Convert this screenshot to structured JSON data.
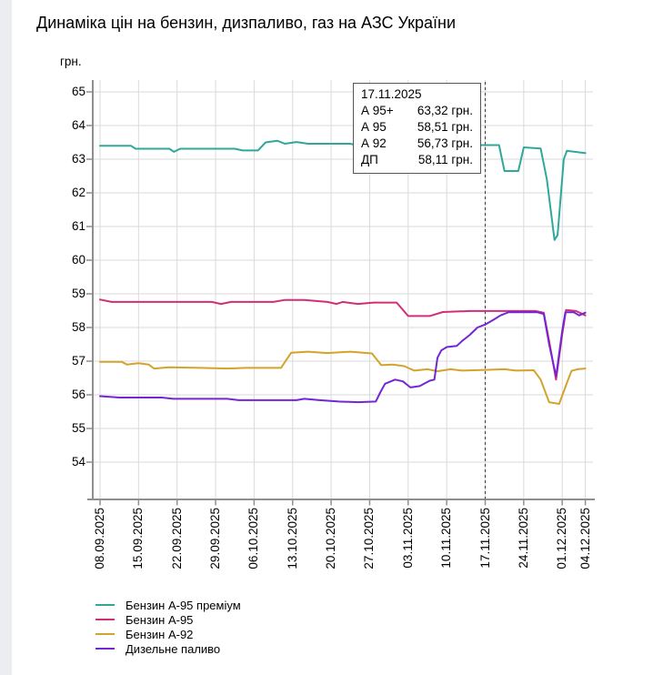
{
  "title": "Динаміка цін на бензин, дизпаливо, газ на АЗС України",
  "tooltip": {
    "date": "17.11.2025",
    "rows": [
      {
        "label": "А 95+",
        "value": "63,32 грн."
      },
      {
        "label": "А 95",
        "value": "58,51 грн."
      },
      {
        "label": "А 92",
        "value": "56,73 грн."
      },
      {
        "label": "ДП",
        "value": "58,11 грн."
      }
    ]
  },
  "chart_data": {
    "type": "line",
    "title": "Динаміка цін на бензин, дизпаливо, газ на АЗС України",
    "xlabel": "",
    "ylabel": "грн.",
    "ylim": [
      52.9,
      65.4
    ],
    "grid": true,
    "legend_position": "bottom-left",
    "y_ticks": [
      65,
      64,
      63,
      62,
      61,
      60,
      59,
      58,
      57,
      56,
      55,
      54
    ],
    "x_ticks": [
      {
        "index": 0,
        "label": "08.09.2025"
      },
      {
        "index": 5,
        "label": "15.09.2025"
      },
      {
        "index": 10,
        "label": "22.09.2025"
      },
      {
        "index": 15,
        "label": "29.09.2025"
      },
      {
        "index": 20,
        "label": "06.10.2025"
      },
      {
        "index": 25,
        "label": "13.10.2025"
      },
      {
        "index": 30,
        "label": "20.10.2025"
      },
      {
        "index": 35,
        "label": "27.10.2025"
      },
      {
        "index": 40,
        "label": "03.11.2025"
      },
      {
        "index": 45,
        "label": "10.11.2025"
      },
      {
        "index": 50,
        "label": "17.11.2025"
      },
      {
        "index": 55,
        "label": "24.11.2025"
      },
      {
        "index": 60,
        "label": "01.12.2025"
      },
      {
        "index": 63,
        "label": "04.12.2025"
      }
    ],
    "marker_line_index": 50,
    "marker_line_date": "17.11.2025",
    "axis_color": "#8f8f8f",
    "grid_color": "#dadada",
    "marker_line_color": "#3c3c3c",
    "series": [
      {
        "name": "Бензин А-95 преміум",
        "color": "#2fa89a",
        "points": [
          [
            0,
            63.4
          ],
          [
            4,
            63.4
          ],
          [
            4.6,
            63.31
          ],
          [
            9,
            63.31
          ],
          [
            9.6,
            63.22
          ],
          [
            10.4,
            63.31
          ],
          [
            17.5,
            63.31
          ],
          [
            18.5,
            63.26
          ],
          [
            20.5,
            63.26
          ],
          [
            21.5,
            63.5
          ],
          [
            23,
            63.55
          ],
          [
            24,
            63.46
          ],
          [
            25.5,
            63.51
          ],
          [
            27,
            63.46
          ],
          [
            32.5,
            63.46
          ],
          [
            33.5,
            63.4
          ],
          [
            36,
            63.4
          ],
          [
            37,
            62.62
          ],
          [
            39,
            62.62
          ],
          [
            39.8,
            63.05
          ],
          [
            40.5,
            63.4
          ],
          [
            42.8,
            63.4
          ],
          [
            43.4,
            62.62
          ],
          [
            44,
            62.72
          ],
          [
            45.5,
            63.0
          ],
          [
            47,
            63.2
          ],
          [
            48.5,
            63.38
          ],
          [
            49.5,
            63.42
          ],
          [
            51.8,
            63.42
          ],
          [
            52.5,
            62.65
          ],
          [
            54.3,
            62.65
          ],
          [
            55,
            63.35
          ],
          [
            57.2,
            63.32
          ],
          [
            58,
            62.4
          ],
          [
            59,
            60.6
          ],
          [
            59.4,
            60.75
          ],
          [
            60.2,
            63.0
          ],
          [
            60.6,
            63.25
          ],
          [
            63,
            63.18
          ]
        ]
      },
      {
        "name": "Бензин А-95",
        "color": "#d02f77",
        "points": [
          [
            0,
            58.83
          ],
          [
            1.5,
            58.76
          ],
          [
            14.5,
            58.76
          ],
          [
            15.7,
            58.7
          ],
          [
            17,
            58.76
          ],
          [
            22.5,
            58.76
          ],
          [
            24,
            58.82
          ],
          [
            26.5,
            58.82
          ],
          [
            29.5,
            58.76
          ],
          [
            30.7,
            58.7
          ],
          [
            31.5,
            58.76
          ],
          [
            33.5,
            58.7
          ],
          [
            35.5,
            58.74
          ],
          [
            38.5,
            58.74
          ],
          [
            40,
            58.34
          ],
          [
            42.8,
            58.34
          ],
          [
            44.5,
            58.46
          ],
          [
            48,
            58.49
          ],
          [
            56.5,
            58.49
          ],
          [
            57.6,
            58.44
          ],
          [
            58.3,
            57.6
          ],
          [
            59.2,
            56.45
          ],
          [
            60,
            57.8
          ],
          [
            60.5,
            58.52
          ],
          [
            61.8,
            58.49
          ],
          [
            63,
            58.36
          ]
        ]
      },
      {
        "name": "Бензин А-92",
        "color": "#d2a42e",
        "points": [
          [
            0,
            56.98
          ],
          [
            2.8,
            56.98
          ],
          [
            3.5,
            56.9
          ],
          [
            5,
            56.94
          ],
          [
            6.3,
            56.9
          ],
          [
            7,
            56.78
          ],
          [
            9,
            56.82
          ],
          [
            13,
            56.8
          ],
          [
            16.5,
            56.78
          ],
          [
            19,
            56.8
          ],
          [
            23.5,
            56.8
          ],
          [
            24.8,
            57.25
          ],
          [
            27,
            57.28
          ],
          [
            29.5,
            57.24
          ],
          [
            32.5,
            57.28
          ],
          [
            35.3,
            57.23
          ],
          [
            36.5,
            56.88
          ],
          [
            38,
            56.9
          ],
          [
            39.5,
            56.85
          ],
          [
            40.8,
            56.72
          ],
          [
            42.5,
            56.76
          ],
          [
            43.8,
            56.7
          ],
          [
            45.5,
            56.76
          ],
          [
            47,
            56.72
          ],
          [
            50,
            56.74
          ],
          [
            52.5,
            56.76
          ],
          [
            54,
            56.72
          ],
          [
            56.3,
            56.73
          ],
          [
            57.2,
            56.45
          ],
          [
            58.3,
            55.78
          ],
          [
            59.6,
            55.73
          ],
          [
            60.6,
            56.35
          ],
          [
            61.2,
            56.71
          ],
          [
            62,
            56.76
          ],
          [
            63,
            56.78
          ]
        ]
      },
      {
        "name": "Дизельне паливо",
        "color": "#7326d3",
        "points": [
          [
            0,
            55.96
          ],
          [
            2.5,
            55.92
          ],
          [
            8,
            55.92
          ],
          [
            9.5,
            55.88
          ],
          [
            16.5,
            55.88
          ],
          [
            18,
            55.84
          ],
          [
            25.5,
            55.84
          ],
          [
            26.5,
            55.88
          ],
          [
            28.5,
            55.84
          ],
          [
            31,
            55.8
          ],
          [
            33.5,
            55.78
          ],
          [
            35.8,
            55.8
          ],
          [
            36.4,
            56.08
          ],
          [
            37,
            56.33
          ],
          [
            38.3,
            56.45
          ],
          [
            39.3,
            56.4
          ],
          [
            40.3,
            56.22
          ],
          [
            41.5,
            56.26
          ],
          [
            42.8,
            56.42
          ],
          [
            43.4,
            56.45
          ],
          [
            43.8,
            57.1
          ],
          [
            44.3,
            57.32
          ],
          [
            45,
            57.42
          ],
          [
            46.3,
            57.45
          ],
          [
            47,
            57.6
          ],
          [
            48,
            57.78
          ],
          [
            49,
            58.0
          ],
          [
            50,
            58.09
          ],
          [
            51,
            58.22
          ],
          [
            52,
            58.36
          ],
          [
            53,
            58.45
          ],
          [
            56.8,
            58.45
          ],
          [
            57.6,
            58.4
          ],
          [
            58.3,
            57.5
          ],
          [
            59.2,
            56.55
          ],
          [
            60,
            57.9
          ],
          [
            60.4,
            58.45
          ],
          [
            61.5,
            58.45
          ],
          [
            62.2,
            58.36
          ],
          [
            63,
            58.44
          ]
        ]
      }
    ]
  }
}
